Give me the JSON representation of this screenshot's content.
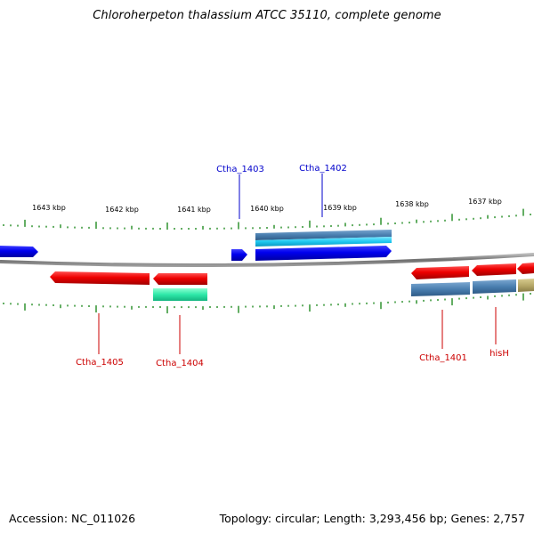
{
  "title": "Chloroherpeton thalassium ATCC 35110, complete genome",
  "footer": {
    "accession": "Accession: NC_011026",
    "topology": "Topology: circular; Length: 3,293,456 bp; Genes: 2,757"
  },
  "scale": {
    "unit": "kbp",
    "tick_labels": [
      "1643 kbp",
      "1642 kbp",
      "1641 kbp",
      "1640 kbp",
      "1639 kbp",
      "1638 kbp",
      "1637 kbp"
    ]
  },
  "colors": {
    "forward_strand": "#0000ee",
    "reverse_strand": "#ee0000",
    "forward_label": "#0000cc",
    "reverse_label": "#cc0000",
    "backbone": "#808080",
    "ticks": "#228B22",
    "feature_steel": "#4a7fb0",
    "feature_sky": "#1ec8f0",
    "feature_teal": "#2ee8a8",
    "feature_olive": "#b8aa6a"
  },
  "features": {
    "forward": [
      {
        "name": "",
        "color": "forward_strand"
      },
      {
        "name": "Ctha_1403",
        "color": "forward_strand"
      },
      {
        "name": "Ctha_1402",
        "color": "forward_strand"
      }
    ],
    "forward_annotations": [
      {
        "color": "feature_steel"
      },
      {
        "color": "feature_sky"
      }
    ],
    "reverse": [
      {
        "name": "Ctha_1405",
        "color": "reverse_strand"
      },
      {
        "name": "Ctha_1404",
        "color": "reverse_strand"
      },
      {
        "name": "Ctha_1401",
        "color": "reverse_strand"
      },
      {
        "name": "hisH",
        "color": "reverse_strand"
      },
      {
        "name": "",
        "color": "reverse_strand"
      }
    ],
    "reverse_annotations": [
      {
        "color": "feature_teal"
      },
      {
        "color": "feature_steel"
      },
      {
        "color": "feature_steel"
      },
      {
        "color": "feature_olive"
      }
    ]
  }
}
